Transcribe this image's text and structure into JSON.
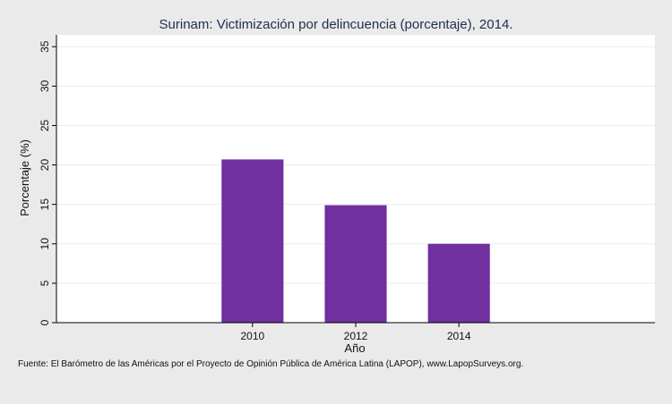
{
  "chart_data": {
    "type": "bar",
    "title": "Surinam: Victimización por delincuencia (porcentaje), 2014.",
    "xlabel": "Año",
    "ylabel": "Porcentaje (%)",
    "categories": [
      "2010",
      "2012",
      "2014"
    ],
    "values": [
      20.7,
      14.9,
      10.0
    ],
    "ylim": [
      0,
      36.5
    ],
    "yticks": [
      0,
      5,
      10,
      15,
      20,
      25,
      30,
      35
    ],
    "xlim": [
      2006.2,
      2017.8
    ],
    "grid": true,
    "bar_color": "#7030a0",
    "source": "Fuente: El Barómetro de las Américas por el Proyecto de Opinión Pública de América Latina (LAPOP), www.LapopSurveys.org."
  }
}
